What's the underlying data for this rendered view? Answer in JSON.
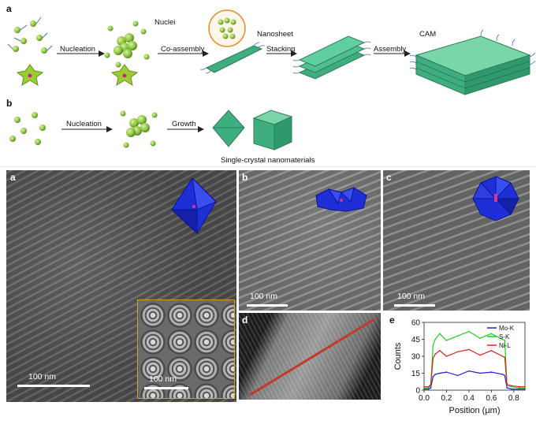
{
  "scheme": {
    "panel_a_label": "a",
    "panel_b_label": "b",
    "row_a": {
      "step1": "Nucleation",
      "nuclei": "Nuclei",
      "step2": "Co-assembly",
      "nanosheet": "Nanosheet",
      "step3": "Stacking",
      "step4": "Assembly",
      "product": "CAM"
    },
    "row_b": {
      "step1": "Nucleation",
      "step2": "Growth",
      "caption": "Single-crystal nanomaterials"
    }
  },
  "micrographs": {
    "a": {
      "label": "a",
      "scale": "100 nm",
      "inset_scale": "100 nm"
    },
    "b": {
      "label": "b",
      "scale": "100 nm"
    },
    "c": {
      "label": "c",
      "scale": "100 nm"
    },
    "d": {
      "label": "d"
    },
    "e": {
      "label": "e"
    }
  },
  "colors": {
    "sphere_green": "#8dc63f",
    "sheet_green": "#3fae7f",
    "polyhedron_blue": "#1f2fd8",
    "line_red": "#c0392b",
    "inset_border": "#e0a020",
    "mo": "#1f1fd0",
    "s": "#22cc22",
    "ni": "#e02020"
  },
  "chart_data": {
    "type": "line",
    "xlabel": "Position (μm)",
    "ylabel": "Counts",
    "xlim": [
      0,
      0.9
    ],
    "ylim": [
      0,
      60
    ],
    "xticks": [
      "0.0",
      "0.2",
      "0.4",
      "0.6",
      "0.8"
    ],
    "yticks": [
      "0",
      "15",
      "30",
      "45",
      "60"
    ],
    "legend_position": "top-right",
    "series": [
      {
        "name": "Mo-K",
        "color": "#1f1fd0",
        "x": [
          0,
          0.04,
          0.06,
          0.08,
          0.1,
          0.14,
          0.2,
          0.3,
          0.4,
          0.5,
          0.6,
          0.7,
          0.72,
          0.74,
          0.78,
          0.85,
          0.9
        ],
        "y": [
          1,
          1,
          2,
          12,
          14,
          15,
          16,
          13,
          17,
          15,
          16,
          14,
          13,
          2,
          1,
          1,
          1
        ]
      },
      {
        "name": "S-K",
        "color": "#22cc22",
        "x": [
          0,
          0.04,
          0.06,
          0.08,
          0.1,
          0.14,
          0.2,
          0.3,
          0.4,
          0.5,
          0.6,
          0.7,
          0.72,
          0.74,
          0.78,
          0.85,
          0.9
        ],
        "y": [
          2,
          2,
          4,
          40,
          45,
          50,
          44,
          48,
          52,
          46,
          50,
          45,
          44,
          4,
          3,
          2,
          2
        ]
      },
      {
        "name": "Ni-L",
        "color": "#e02020",
        "x": [
          0,
          0.04,
          0.06,
          0.08,
          0.1,
          0.14,
          0.2,
          0.3,
          0.4,
          0.5,
          0.6,
          0.7,
          0.72,
          0.74,
          0.78,
          0.85,
          0.9
        ],
        "y": [
          3,
          3,
          5,
          28,
          32,
          35,
          30,
          34,
          36,
          31,
          35,
          30,
          29,
          5,
          4,
          3,
          3
        ]
      }
    ]
  }
}
